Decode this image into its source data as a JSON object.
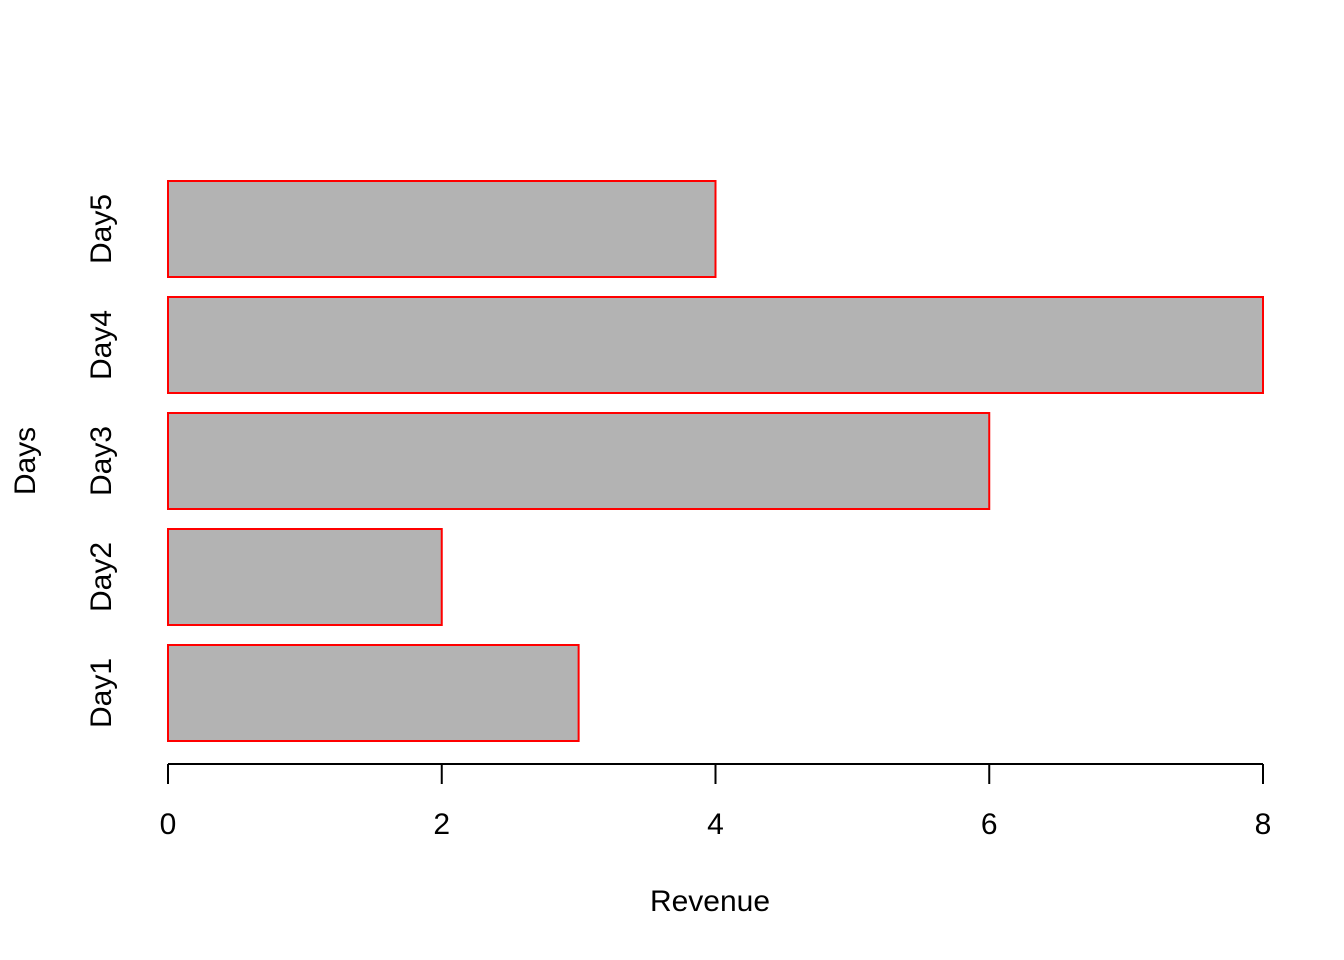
{
  "chart_data": {
    "type": "bar",
    "orientation": "horizontal",
    "categories": [
      "Day1",
      "Day2",
      "Day3",
      "Day4",
      "Day5"
    ],
    "values": [
      3,
      2,
      6,
      8,
      4
    ],
    "title": "",
    "xlabel": "Revenue",
    "ylabel": "Days",
    "xlim": [
      0,
      8
    ],
    "x_ticks": [
      0,
      2,
      4,
      6,
      8
    ],
    "grid": false,
    "bar_fill": "#b3b3b3",
    "bar_border": "#ff0000"
  }
}
